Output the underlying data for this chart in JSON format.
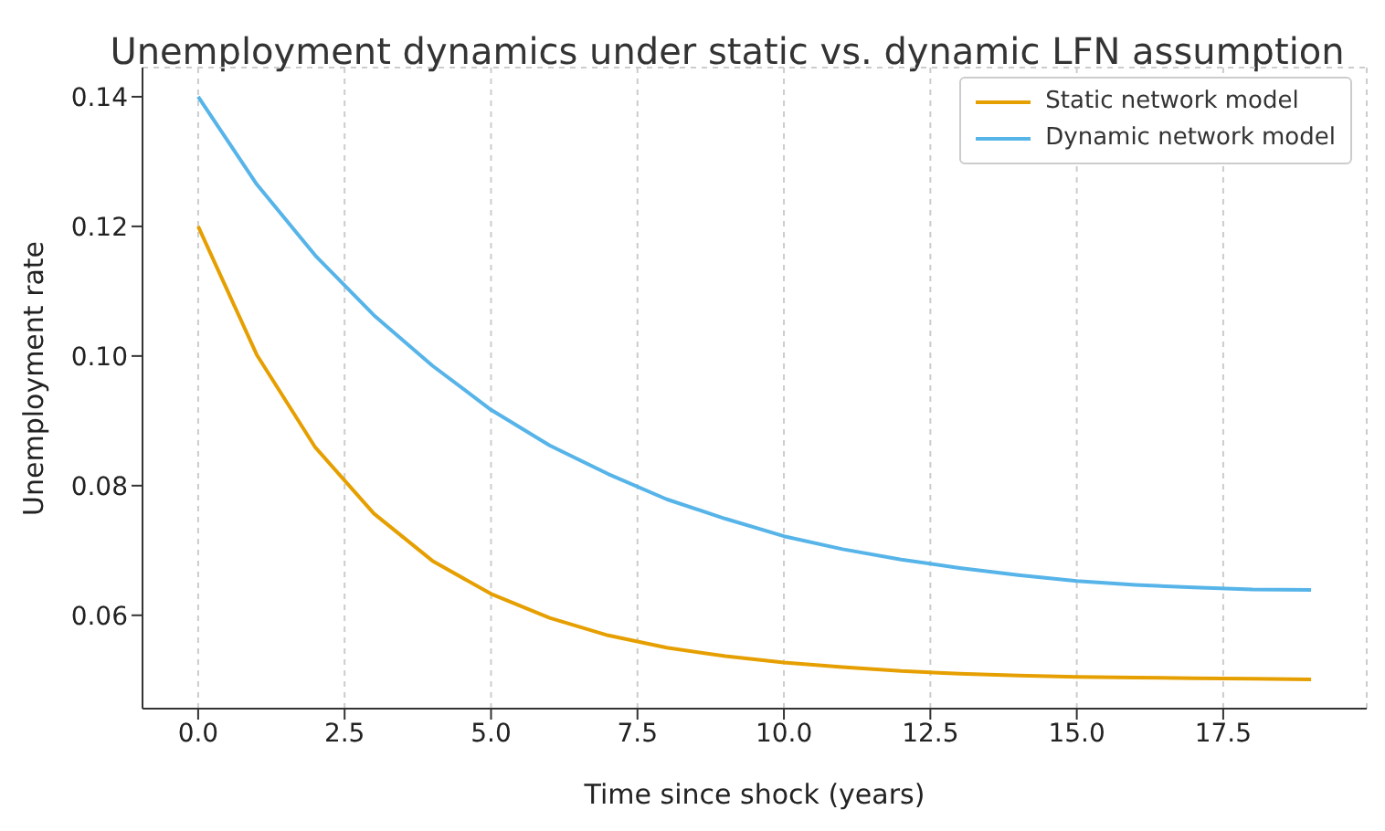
{
  "chart_data": {
    "type": "line",
    "title": "Unemployment dynamics under static vs. dynamic LFN assumption",
    "xlabel": "Time since shock (years)",
    "ylabel": "Unemployment rate",
    "x": [
      0,
      1,
      2,
      3,
      4,
      5,
      6,
      7,
      8,
      9,
      10,
      11,
      12,
      13,
      14,
      15,
      16,
      17,
      18,
      19
    ],
    "series": [
      {
        "name": "Static network model",
        "color": "#e69f00",
        "values": [
          0.12,
          0.1002,
          0.0859,
          0.0757,
          0.0684,
          0.0633,
          0.0596,
          0.0569,
          0.055,
          0.0537,
          0.0527,
          0.052,
          0.0514,
          0.051,
          0.0507,
          0.0505,
          0.0504,
          0.0503,
          0.0502,
          0.0501
        ]
      },
      {
        "name": "Dynamic network model",
        "color": "#56b4e9",
        "values": [
          0.14,
          0.1265,
          0.1155,
          0.1063,
          0.0985,
          0.0917,
          0.0862,
          0.0818,
          0.0779,
          0.0749,
          0.0722,
          0.0702,
          0.0686,
          0.0673,
          0.0662,
          0.0653,
          0.0647,
          0.0643,
          0.064,
          0.0639
        ]
      }
    ],
    "xlim": [
      -0.95,
      19.95
    ],
    "xticks": [
      {
        "value": 0,
        "label": "0.0"
      },
      {
        "value": 2.5,
        "label": "2.5"
      },
      {
        "value": 5,
        "label": "5.0"
      },
      {
        "value": 7.5,
        "label": "7.5"
      },
      {
        "value": 10,
        "label": "10.0"
      },
      {
        "value": 12.5,
        "label": "12.5"
      },
      {
        "value": 15,
        "label": "15.0"
      },
      {
        "value": 17.5,
        "label": "17.5"
      }
    ],
    "ylim": [
      0.0456,
      0.1445
    ],
    "yticks": [
      {
        "value": 0.06,
        "label": "0.06"
      },
      {
        "value": 0.08,
        "label": "0.08"
      },
      {
        "value": 0.1,
        "label": "0.10"
      },
      {
        "value": 0.12,
        "label": "0.12"
      },
      {
        "value": 0.14,
        "label": "0.14"
      }
    ],
    "grid": true,
    "legend": "top right",
    "marker": "none",
    "line_style": "solid"
  }
}
